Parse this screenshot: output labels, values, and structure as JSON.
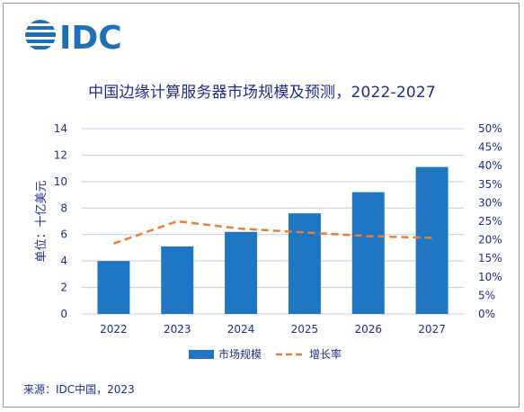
{
  "logo_text": "IDC",
  "colors": {
    "bar": "#1f77c4",
    "line": "#ed7d31",
    "text": "#1f2d8c",
    "grid": "#c9c9ea",
    "logo": "#1e6fb5"
  },
  "chart_data": {
    "type": "bar",
    "title": "中国边缘计算服务器市场规模及预测，2022-2027",
    "categories": [
      "2022",
      "2023",
      "2024",
      "2025",
      "2026",
      "2027"
    ],
    "series": [
      {
        "name": "市场规模",
        "type": "bar",
        "axis": "left",
        "values": [
          4.0,
          5.1,
          6.2,
          7.6,
          9.2,
          11.1
        ]
      },
      {
        "name": "增长率",
        "type": "line",
        "style": "dashed",
        "axis": "right",
        "values": [
          19,
          25,
          23,
          22,
          21,
          20.5
        ]
      }
    ],
    "ylabel": "单位：十亿美元",
    "ylim": [
      0,
      14
    ],
    "yticks": [
      "0",
      "2",
      "4",
      "6",
      "8",
      "10",
      "12",
      "14"
    ],
    "y2lim": [
      0,
      50
    ],
    "y2ticks": [
      "0%",
      "5%",
      "10%",
      "15%",
      "20%",
      "25%",
      "30%",
      "35%",
      "40%",
      "45%",
      "50%"
    ],
    "grid": true,
    "legend_position": "bottom"
  },
  "footer": {
    "source": "来源：IDC中国，2023"
  }
}
